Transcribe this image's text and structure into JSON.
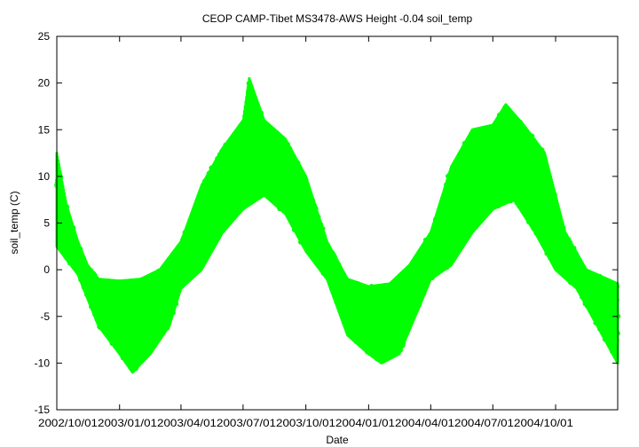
{
  "chart_data": {
    "type": "scatter",
    "title": "CEOP CAMP-Tibet MS3478-AWS Height -0.04 soil_temp",
    "xlabel": "Date",
    "ylabel": "soil_temp (C)",
    "xlim": [
      "2002-10-01",
      "2004-12-31"
    ],
    "ylim": [
      -15,
      25
    ],
    "y_ticks": [
      -15,
      -10,
      -5,
      0,
      5,
      10,
      15,
      20,
      25
    ],
    "x_ticks": [
      "2002/10/01",
      "2003/01/01",
      "2003/04/01",
      "2003/07/01",
      "2003/10/01",
      "2004/01/01",
      "2004/04/01",
      "2004/07/01",
      "2004/10/01"
    ],
    "x_tick_text": "2002/10/012003/01/012003/04/012003/07/012003/10/012004/01/012004/04/012004/07/012004/10/01",
    "grid": false,
    "series": [
      {
        "color": "#00ff00",
        "marker": "filled-circle",
        "daily_mean": [
          {
            "x": "2002-10-01",
            "y": 5.0
          },
          {
            "x": "2002-10-15",
            "y": 3.5
          },
          {
            "x": "2002-11-01",
            "y": 1.2
          },
          {
            "x": "2002-11-15",
            "y": -0.5
          },
          {
            "x": "2002-12-01",
            "y": -2.5
          },
          {
            "x": "2002-12-15",
            "y": -4.2
          },
          {
            "x": "2003-01-01",
            "y": -5.0
          },
          {
            "x": "2003-01-15",
            "y": -5.5
          },
          {
            "x": "2003-02-01",
            "y": -5.0
          },
          {
            "x": "2003-02-15",
            "y": -4.2
          },
          {
            "x": "2003-03-01",
            "y": -3.0
          },
          {
            "x": "2003-03-15",
            "y": -1.5
          },
          {
            "x": "2003-04-01",
            "y": 0.5
          },
          {
            "x": "2003-04-15",
            "y": 2.5
          },
          {
            "x": "2003-05-01",
            "y": 4.5
          },
          {
            "x": "2003-05-15",
            "y": 6.5
          },
          {
            "x": "2003-06-01",
            "y": 8.5
          },
          {
            "x": "2003-06-15",
            "y": 10.0
          },
          {
            "x": "2003-07-01",
            "y": 11.0
          },
          {
            "x": "2003-07-15",
            "y": 11.5
          },
          {
            "x": "2003-08-01",
            "y": 11.5
          },
          {
            "x": "2003-08-15",
            "y": 11.0
          },
          {
            "x": "2003-09-01",
            "y": 9.5
          },
          {
            "x": "2003-09-15",
            "y": 7.5
          },
          {
            "x": "2003-10-01",
            "y": 5.0
          },
          {
            "x": "2003-10-15",
            "y": 3.0
          },
          {
            "x": "2003-11-01",
            "y": 0.5
          },
          {
            "x": "2003-11-15",
            "y": -1.5
          },
          {
            "x": "2003-12-01",
            "y": -3.5
          },
          {
            "x": "2003-12-15",
            "y": -4.8
          },
          {
            "x": "2004-01-01",
            "y": -5.2
          },
          {
            "x": "2004-01-15",
            "y": -5.5
          },
          {
            "x": "2004-02-01",
            "y": -5.0
          },
          {
            "x": "2004-02-15",
            "y": -4.0
          },
          {
            "x": "2004-03-01",
            "y": -2.5
          },
          {
            "x": "2004-03-15",
            "y": -1.0
          },
          {
            "x": "2004-04-01",
            "y": 0.5
          },
          {
            "x": "2004-04-15",
            "y": 2.0
          },
          {
            "x": "2004-05-01",
            "y": 4.0
          },
          {
            "x": "2004-05-15",
            "y": 6.0
          },
          {
            "x": "2004-06-01",
            "y": 8.0
          },
          {
            "x": "2004-06-15",
            "y": 9.5
          },
          {
            "x": "2004-07-01",
            "y": 10.5
          },
          {
            "x": "2004-07-15",
            "y": 11.0
          },
          {
            "x": "2004-08-01",
            "y": 11.0
          },
          {
            "x": "2004-08-15",
            "y": 10.5
          },
          {
            "x": "2004-09-01",
            "y": 9.0
          },
          {
            "x": "2004-09-15",
            "y": 6.5
          },
          {
            "x": "2004-10-01",
            "y": 3.5
          },
          {
            "x": "2004-10-15",
            "y": 1.0
          },
          {
            "x": "2004-11-01",
            "y": -0.5
          },
          {
            "x": "2004-11-15",
            "y": -2.0
          },
          {
            "x": "2004-12-01",
            "y": -3.0
          },
          {
            "x": "2004-12-15",
            "y": -3.8
          },
          {
            "x": "2004-12-31",
            "y": -4.5
          }
        ],
        "daily_range_upper": [
          {
            "x": "2002-10-01",
            "y": 12.5
          },
          {
            "x": "2002-10-15",
            "y": 7.0
          },
          {
            "x": "2002-11-01",
            "y": 3.0
          },
          {
            "x": "2002-11-15",
            "y": 0.5
          },
          {
            "x": "2002-12-01",
            "y": -1.0
          },
          {
            "x": "2003-01-01",
            "y": -1.2
          },
          {
            "x": "2003-02-01",
            "y": -1.0
          },
          {
            "x": "2003-03-01",
            "y": 0.0
          },
          {
            "x": "2003-04-01",
            "y": 3.0
          },
          {
            "x": "2003-05-01",
            "y": 9.0
          },
          {
            "x": "2003-06-01",
            "y": 13.0
          },
          {
            "x": "2003-07-01",
            "y": 16.0
          },
          {
            "x": "2003-07-10",
            "y": 20.5
          },
          {
            "x": "2003-08-01",
            "y": 16.0
          },
          {
            "x": "2003-09-01",
            "y": 14.0
          },
          {
            "x": "2003-10-01",
            "y": 10.0
          },
          {
            "x": "2003-11-01",
            "y": 3.0
          },
          {
            "x": "2003-12-01",
            "y": -1.0
          },
          {
            "x": "2004-01-01",
            "y": -1.8
          },
          {
            "x": "2004-02-01",
            "y": -1.5
          },
          {
            "x": "2004-03-01",
            "y": 0.5
          },
          {
            "x": "2004-04-01",
            "y": 4.0
          },
          {
            "x": "2004-05-01",
            "y": 11.0
          },
          {
            "x": "2004-06-01",
            "y": 15.0
          },
          {
            "x": "2004-07-01",
            "y": 15.5
          },
          {
            "x": "2004-07-20",
            "y": 17.7
          },
          {
            "x": "2004-08-15",
            "y": 15.5
          },
          {
            "x": "2004-09-15",
            "y": 12.5
          },
          {
            "x": "2004-10-15",
            "y": 4.0
          },
          {
            "x": "2004-11-15",
            "y": 0.0
          },
          {
            "x": "2004-12-31",
            "y": -1.5
          }
        ],
        "daily_range_lower": [
          {
            "x": "2002-10-01",
            "y": 2.5
          },
          {
            "x": "2002-11-01",
            "y": -0.5
          },
          {
            "x": "2002-12-01",
            "y": -6.0
          },
          {
            "x": "2003-01-01",
            "y": -9.0
          },
          {
            "x": "2003-01-20",
            "y": -11.0
          },
          {
            "x": "2003-02-15",
            "y": -9.0
          },
          {
            "x": "2003-03-15",
            "y": -6.0
          },
          {
            "x": "2003-04-01",
            "y": -2.0
          },
          {
            "x": "2003-05-01",
            "y": 0.0
          },
          {
            "x": "2003-06-01",
            "y": 4.0
          },
          {
            "x": "2003-07-01",
            "y": 6.5
          },
          {
            "x": "2003-08-01",
            "y": 8.0
          },
          {
            "x": "2003-09-01",
            "y": 6.0
          },
          {
            "x": "2003-10-01",
            "y": 2.0
          },
          {
            "x": "2003-11-01",
            "y": -1.0
          },
          {
            "x": "2003-12-01",
            "y": -7.0
          },
          {
            "x": "2004-01-01",
            "y": -9.0
          },
          {
            "x": "2004-01-20",
            "y": -10.0
          },
          {
            "x": "2004-02-15",
            "y": -9.0
          },
          {
            "x": "2004-03-15",
            "y": -4.0
          },
          {
            "x": "2004-04-01",
            "y": -1.0
          },
          {
            "x": "2004-05-01",
            "y": 0.5
          },
          {
            "x": "2004-06-01",
            "y": 4.0
          },
          {
            "x": "2004-07-01",
            "y": 6.5
          },
          {
            "x": "2004-08-01",
            "y": 7.5
          },
          {
            "x": "2004-09-01",
            "y": 4.0
          },
          {
            "x": "2004-10-01",
            "y": 0.0
          },
          {
            "x": "2004-11-01",
            "y": -2.0
          },
          {
            "x": "2004-12-01",
            "y": -6.0
          },
          {
            "x": "2004-12-31",
            "y": -10.0
          }
        ]
      }
    ]
  }
}
